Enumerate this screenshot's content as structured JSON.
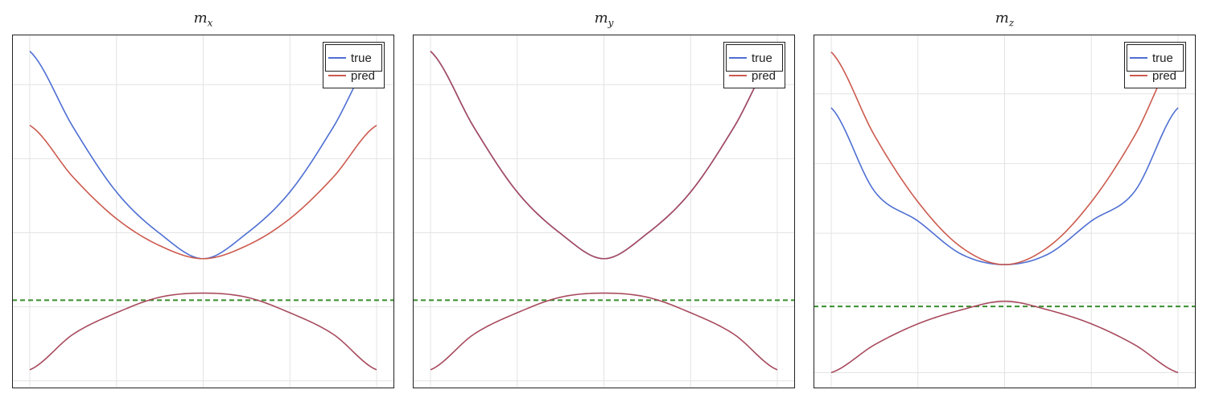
{
  "chart_data": [
    {
      "type": "line",
      "title": "m",
      "title_sub": "x",
      "xlim": [
        -2,
        2
      ],
      "ylim": [
        -4.2,
        5.35
      ],
      "xticks": [
        -2,
        -1,
        0,
        1,
        2
      ],
      "yticks": [
        -4,
        -2,
        0,
        2,
        4
      ],
      "grid": true,
      "legend_position": "top-right",
      "threshold_line": {
        "y": -1.82,
        "style": "dashed",
        "color": "#3a8c2e"
      },
      "x": [
        -2,
        -1.5,
        -1,
        -0.5,
        0,
        0.5,
        1,
        1.5,
        2
      ],
      "series": [
        {
          "name": "true",
          "branch": "upper",
          "color": "#4e6fd3",
          "values": [
            4.9,
            2.85,
            1.1,
            -0.02,
            -0.7,
            -0.02,
            1.1,
            2.85,
            4.9
          ]
        },
        {
          "name": "pred",
          "branch": "upper",
          "color": "#cc5a4e",
          "values": [
            2.9,
            1.5,
            0.38,
            -0.35,
            -0.7,
            -0.35,
            0.38,
            1.5,
            2.9
          ]
        },
        {
          "branch": "lower",
          "color": "#a84a5e",
          "values": [
            -3.7,
            -2.74,
            -2.16,
            -1.74,
            -1.63,
            -1.74,
            -2.16,
            -2.74,
            -3.7
          ]
        }
      ]
    },
    {
      "type": "line",
      "title": "m",
      "title_sub": "y",
      "xlim": [
        -2,
        2
      ],
      "ylim": [
        -4.2,
        5.35
      ],
      "xticks": [
        -2,
        -1,
        0,
        1,
        2
      ],
      "yticks": [
        -4,
        -2,
        0,
        2,
        4
      ],
      "grid": true,
      "legend_position": "top-right",
      "threshold_line": {
        "y": -1.82,
        "style": "dashed",
        "color": "#3a8c2e"
      },
      "x": [
        -2,
        -1.5,
        -1,
        -0.5,
        0,
        0.5,
        1,
        1.5,
        2
      ],
      "series": [
        {
          "name": "true",
          "branch": "upper",
          "color": "#4e6fd3",
          "values": [
            4.9,
            2.85,
            1.1,
            -0.02,
            -0.7,
            -0.02,
            1.1,
            2.85,
            4.9
          ]
        },
        {
          "name": "pred",
          "branch": "upper",
          "color": "#a84a5e",
          "values": [
            4.9,
            2.85,
            1.1,
            -0.02,
            -0.7,
            -0.02,
            1.1,
            2.85,
            4.9
          ]
        },
        {
          "branch": "lower",
          "color": "#a84a5e",
          "values": [
            -3.7,
            -2.74,
            -2.16,
            -1.74,
            -1.63,
            -1.74,
            -2.16,
            -2.74,
            -3.7
          ]
        }
      ]
    },
    {
      "type": "line",
      "title": "m",
      "title_sub": "z",
      "xlim": [
        -2,
        2
      ],
      "ylim": [
        -2.45,
        7.7
      ],
      "xticks": [
        -2,
        -1,
        0,
        1,
        2
      ],
      "yticks": [
        -2,
        0,
        2,
        4,
        6
      ],
      "grid": true,
      "legend_position": "top-right",
      "threshold_line": {
        "y": -0.1,
        "style": "dashed",
        "color": "#3a8c2e"
      },
      "x": [
        -2,
        -1.5,
        -1,
        -0.5,
        0,
        0.5,
        1,
        1.5,
        2
      ],
      "series": [
        {
          "name": "true",
          "branch": "upper",
          "color": "#4e6fd3",
          "values": [
            5.6,
            3.2,
            2.35,
            1.4,
            1.1,
            1.4,
            2.35,
            3.2,
            5.6
          ]
        },
        {
          "name": "pred",
          "branch": "upper",
          "color": "#cc5a4e",
          "values": [
            7.2,
            4.8,
            2.9,
            1.6,
            1.1,
            1.6,
            2.9,
            4.8,
            7.2
          ]
        },
        {
          "branch": "lower",
          "color": "#a84a5e",
          "values": [
            -2.0,
            -1.2,
            -0.6,
            -0.2,
            0.05,
            -0.2,
            -0.6,
            -1.2,
            -2.0
          ]
        }
      ]
    }
  ],
  "legend": {
    "labels": [
      "true",
      "pred"
    ]
  }
}
